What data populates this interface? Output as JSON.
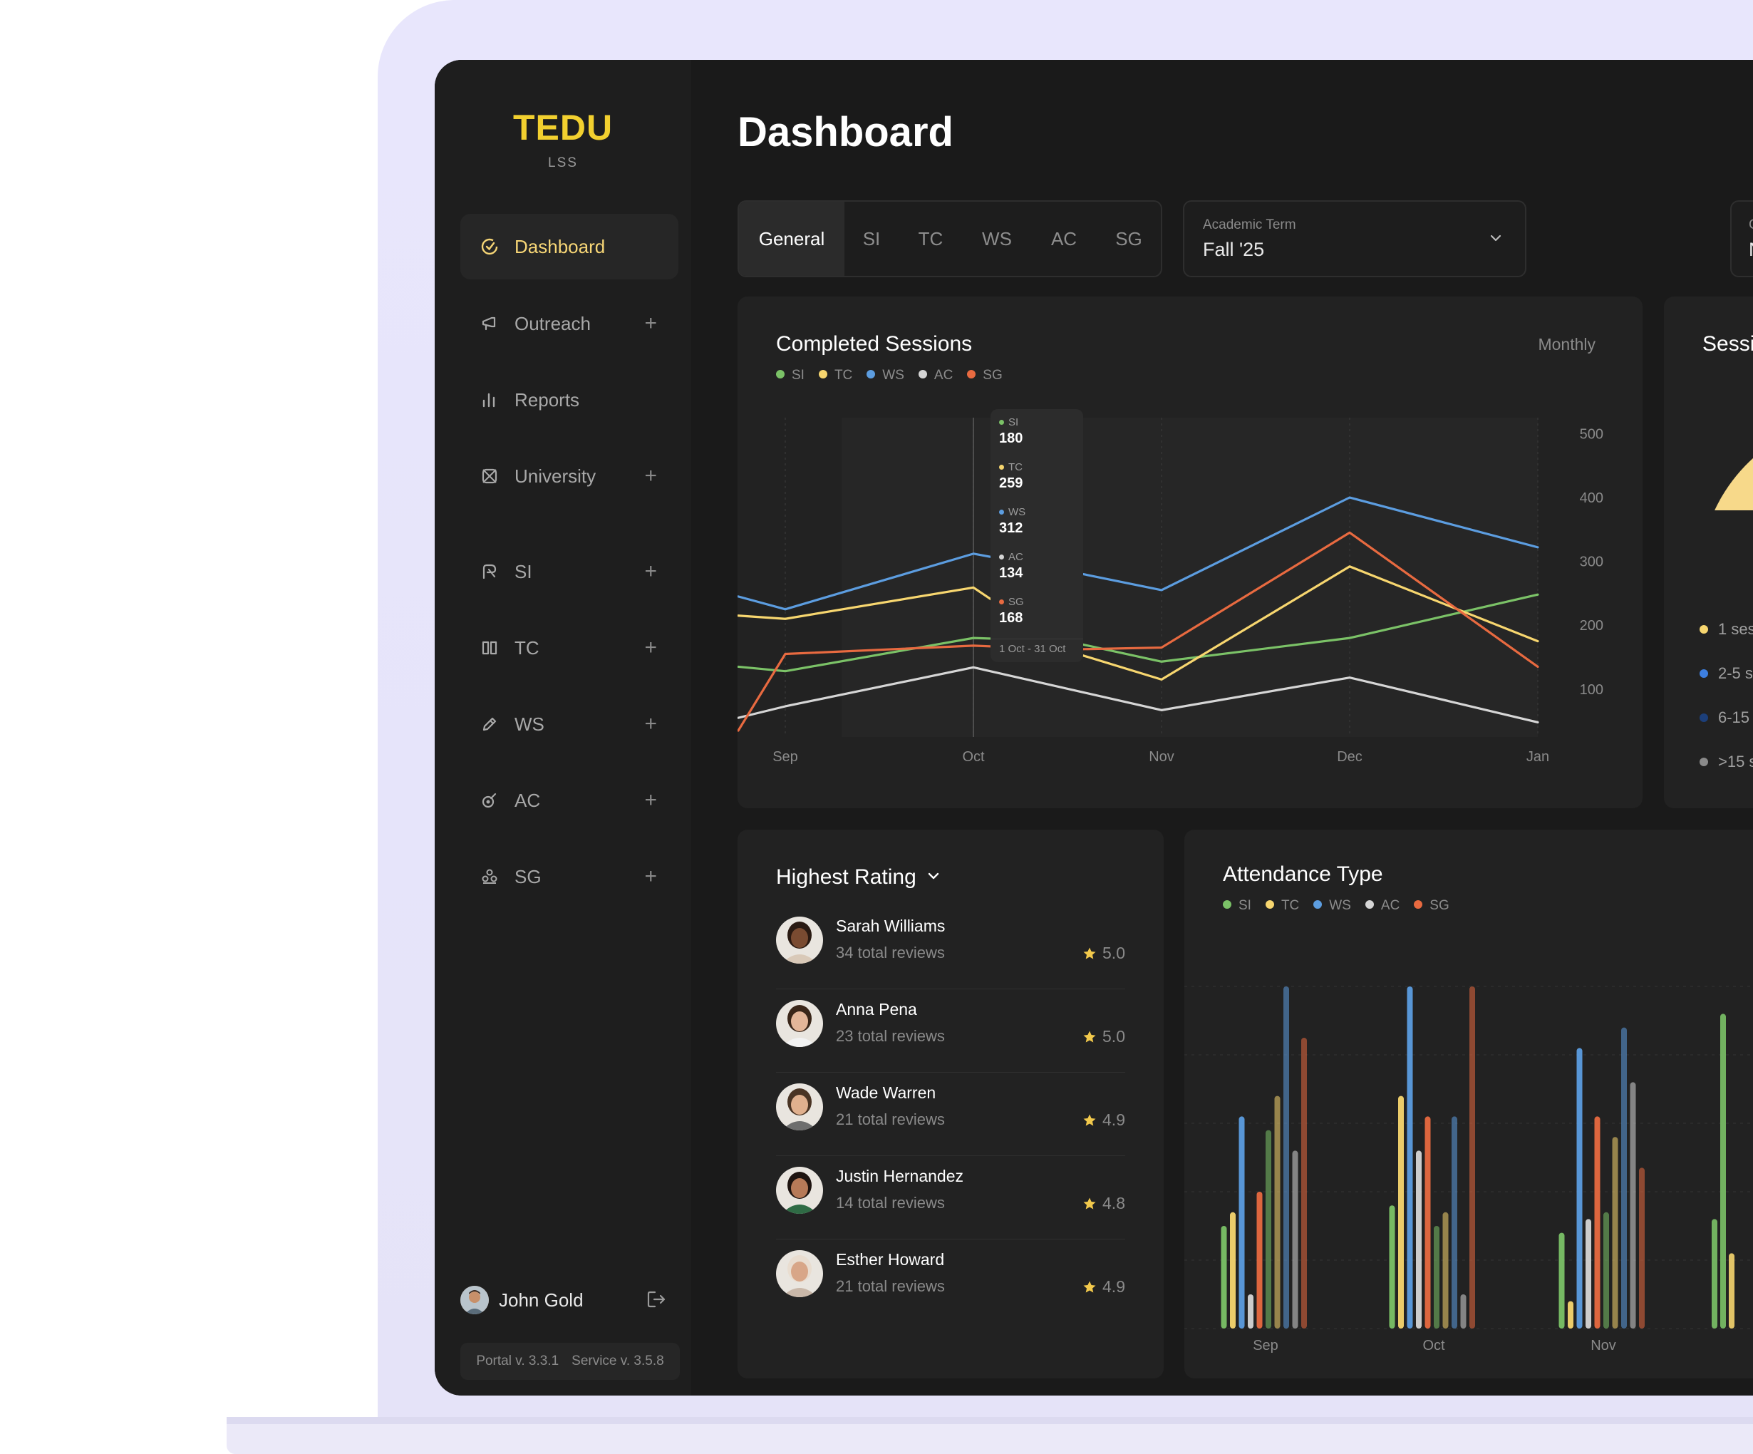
{
  "sidebar": {
    "logo": "TEDU",
    "logo_sub": "LSS",
    "items": [
      {
        "label": "Dashboard",
        "icon": "gauge-icon",
        "has_plus": false,
        "active": true
      },
      {
        "label": "Outreach",
        "icon": "megaphone-icon",
        "has_plus": true
      },
      {
        "label": "Reports",
        "icon": "bar-chart-icon",
        "has_plus": false
      },
      {
        "label": "University",
        "icon": "university-icon",
        "has_plus": true
      },
      {
        "label": "SI",
        "icon": "si-icon",
        "has_plus": true
      },
      {
        "label": "TC",
        "icon": "book-icon",
        "has_plus": true
      },
      {
        "label": "WS",
        "icon": "pencil-icon",
        "has_plus": true
      },
      {
        "label": "AC",
        "icon": "ac-icon",
        "has_plus": true
      },
      {
        "label": "SG",
        "icon": "group-icon",
        "has_plus": true
      }
    ],
    "plus_symbol": "+",
    "user": {
      "name": "John Gold"
    },
    "version_portal": "Portal v. 3.3.1",
    "version_service": "Service v. 3.5.8"
  },
  "header": {
    "title": "Dashboard"
  },
  "tabs": [
    "General",
    "SI",
    "TC",
    "WS",
    "AC",
    "SG"
  ],
  "term": {
    "label": "Academic Term",
    "value": "Fall '25"
  },
  "extra_filter": {
    "label": "C",
    "value": "N"
  },
  "colors": {
    "SI": "#7bc267",
    "TC": "#f7d66f",
    "WS": "#5c9de0",
    "AC": "#d6d6d6",
    "SG": "#e86a40",
    "accent": "#f2d02f"
  },
  "completed_sessions": {
    "title": "Completed Sessions",
    "period": "Monthly",
    "legend": [
      "SI",
      "TC",
      "WS",
      "AC",
      "SG"
    ],
    "tooltip": {
      "range": "1 Oct - 31 Oct",
      "entries": [
        {
          "name": "SI",
          "value": "180"
        },
        {
          "name": "TC",
          "value": "259"
        },
        {
          "name": "WS",
          "value": "312"
        },
        {
          "name": "AC",
          "value": "134"
        },
        {
          "name": "SG",
          "value": "168"
        }
      ]
    }
  },
  "sessions_card": {
    "title": "Sessi",
    "legend": [
      "1 ses",
      "2-5 s",
      "6-15",
      ">15 s"
    ],
    "legend_colors": [
      "#f7d66f",
      "#3d7fe0",
      "#1c3f7a",
      "#8a8a8a"
    ]
  },
  "highest_rating": {
    "title": "Highest Rating",
    "items": [
      {
        "name": "Sarah Williams",
        "reviews": "34 total reviews",
        "score": "5.0",
        "skin": "#7a4b31",
        "hair": "#2a1a12",
        "shirt": "#d9c9b8"
      },
      {
        "name": "Anna Pena",
        "reviews": "23 total reviews",
        "score": "5.0",
        "skin": "#e4b699",
        "hair": "#3a2619",
        "shirt": "#f2f2f2"
      },
      {
        "name": "Wade Warren",
        "reviews": "21 total reviews",
        "score": "4.9",
        "skin": "#e0b08e",
        "hair": "#4a3424",
        "shirt": "#6e6e6e"
      },
      {
        "name": "Justin Hernandez",
        "reviews": "14 total reviews",
        "score": "4.8",
        "skin": "#b77a58",
        "hair": "#1e1410",
        "shirt": "#2f6b45"
      },
      {
        "name": "Esther Howard",
        "reviews": "21 total reviews",
        "score": "4.9",
        "skin": "#d8a688",
        "hair": "#e9ddd0",
        "shirt": "#c9b7a8"
      }
    ]
  },
  "attendance": {
    "title": "Attendance Type",
    "legend": [
      "SI",
      "TC",
      "WS",
      "AC",
      "SG"
    ]
  },
  "chart_data": [
    {
      "type": "line",
      "title": "Completed Sessions",
      "x": [
        "Sep",
        "Oct",
        "Nov",
        "Dec",
        "Jan"
      ],
      "yticks": [
        100,
        200,
        300,
        400,
        500
      ],
      "ylim": [
        25,
        525
      ],
      "legend": "top-left",
      "grid": true,
      "series": [
        {
          "name": "SI",
          "values": [
            [
              -0.25,
              135
            ],
            [
              0,
              128
            ],
            [
              1,
              180
            ],
            [
              1.5,
              175
            ],
            [
              2,
              143
            ],
            [
              3,
              180
            ],
            [
              4,
              248
            ]
          ]
        },
        {
          "name": "TC",
          "values": [
            [
              -0.25,
              215
            ],
            [
              0,
              210
            ],
            [
              1,
              259
            ],
            [
              1.5,
              160
            ],
            [
              2,
              115
            ],
            [
              3,
              292
            ],
            [
              4,
              175
            ]
          ]
        },
        {
          "name": "WS",
          "values": [
            [
              -0.25,
              245
            ],
            [
              0,
              225
            ],
            [
              1,
              312
            ],
            [
              1.5,
              285
            ],
            [
              2,
              255
            ],
            [
              3,
              400
            ],
            [
              4,
              322
            ]
          ]
        },
        {
          "name": "AC",
          "values": [
            [
              -0.25,
              55
            ],
            [
              0,
              73
            ],
            [
              1,
              134
            ],
            [
              2,
              67
            ],
            [
              3,
              118
            ],
            [
              4,
              48
            ]
          ]
        },
        {
          "name": "SG",
          "values": [
            [
              -0.25,
              35
            ],
            [
              0,
              155
            ],
            [
              1,
              168
            ],
            [
              1.5,
              162
            ],
            [
              2,
              165
            ],
            [
              3,
              345
            ],
            [
              4,
              135
            ]
          ]
        }
      ],
      "tooltip_at": "Oct"
    },
    {
      "type": "bar",
      "title": "Attendance Type",
      "categories": [
        "Sep",
        "Oct",
        "Nov"
      ],
      "ylim": [
        0,
        100
      ],
      "series": [
        {
          "name": "SI",
          "values": [
            [
              30,
              58
            ],
            [
              36,
              30
            ],
            [
              28,
              34
            ]
          ]
        },
        {
          "name": "TC",
          "values": [
            [
              34,
              68
            ],
            [
              68,
              34
            ],
            [
              8,
              56
            ]
          ]
        },
        {
          "name": "WS",
          "values": [
            [
              62,
              100
            ],
            [
              100,
              62
            ],
            [
              82,
              88
            ]
          ]
        },
        {
          "name": "AC",
          "values": [
            [
              10,
              52
            ],
            [
              52,
              10
            ],
            [
              32,
              72
            ]
          ]
        },
        {
          "name": "SG",
          "values": [
            [
              40,
              85
            ],
            [
              62,
              100
            ],
            [
              62,
              47
            ]
          ]
        }
      ]
    }
  ]
}
